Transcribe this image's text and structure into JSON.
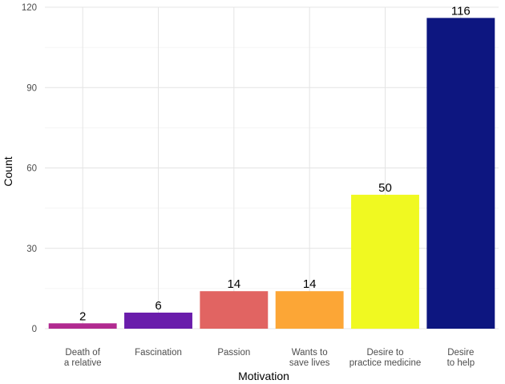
{
  "chart_data": {
    "type": "bar",
    "title": "",
    "xlabel": "Motivation",
    "ylabel": "Count",
    "ylim": [
      0,
      120
    ],
    "yticks": [
      0,
      30,
      60,
      90,
      120
    ],
    "grid": true,
    "categories": [
      [
        "Death of",
        "a relative"
      ],
      [
        "Fascination"
      ],
      [
        "Passion"
      ],
      [
        "Wants to",
        "save lives"
      ],
      [
        "Desire to",
        "practice medicine"
      ],
      [
        "Desire",
        "to help"
      ]
    ],
    "values": [
      2,
      6,
      14,
      14,
      50,
      116
    ],
    "colors": [
      "#b12a90",
      "#6a1cab",
      "#e16462",
      "#fca636",
      "#f0f921",
      "#0d1680"
    ]
  }
}
